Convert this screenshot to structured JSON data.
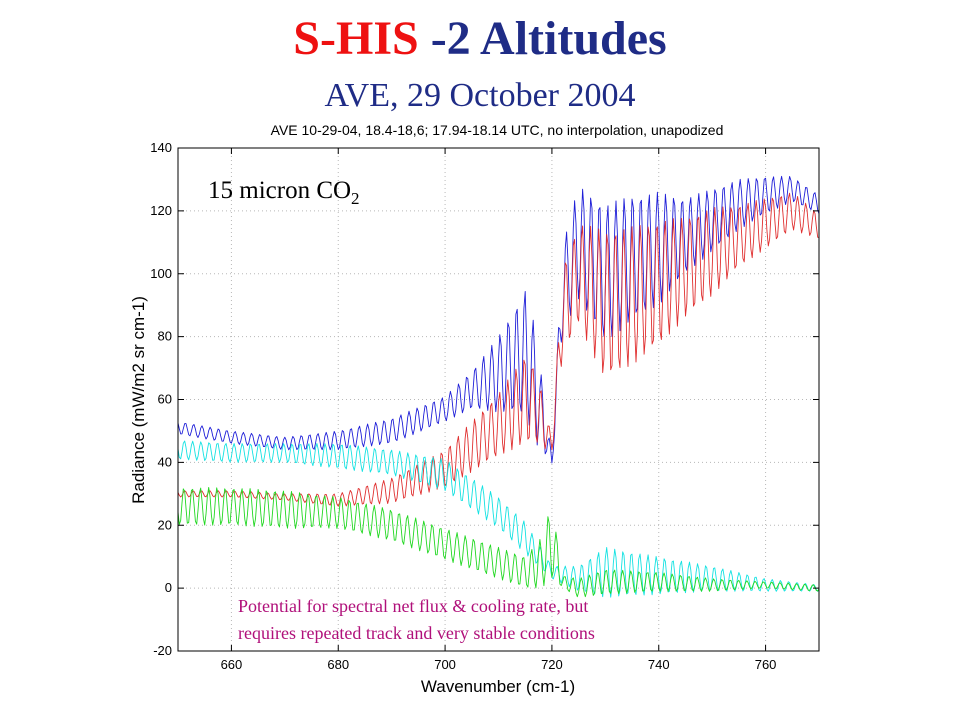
{
  "slide": {
    "title_part1": "S-HIS",
    "title_part2": " -2 Altitudes",
    "subtitle": "AVE, 29 October 2004"
  },
  "chart_data": {
    "type": "line",
    "title": "AVE 10-29-04, 18.4-18,6; 17.94-18.14 UTC, no interpolation, unapodized",
    "xlabel": "Wavenumber (cm-1)",
    "ylabel": "Radiance (mW/m2 sr cm-1)",
    "xlim": [
      650,
      770
    ],
    "ylim": [
      -20,
      140
    ],
    "xticks": [
      660,
      680,
      700,
      720,
      740,
      760
    ],
    "yticks": [
      -20,
      0,
      20,
      40,
      60,
      80,
      100,
      120,
      140
    ],
    "grid": true,
    "series": [
      {
        "color": "#1f1fd8",
        "x": [
          650,
          660,
          670,
          680,
          690,
          700,
          705,
          710,
          715,
          717,
          719,
          720,
          722,
          725,
          730,
          735,
          740,
          745,
          750,
          755,
          760,
          765,
          770
        ],
        "y": [
          51,
          48,
          46,
          47,
          50,
          57,
          63,
          68,
          75,
          64,
          48,
          40,
          95,
          110,
          100,
          105,
          108,
          112,
          117,
          122,
          125,
          127,
          122
        ],
        "amp": [
          2,
          2,
          2,
          3,
          4,
          4,
          6,
          12,
          20,
          18,
          6,
          2,
          14,
          18,
          22,
          20,
          18,
          12,
          10,
          8,
          6,
          4,
          3
        ]
      },
      {
        "color": "#e03030",
        "x": [
          650,
          660,
          670,
          680,
          690,
          700,
          705,
          710,
          715,
          717,
          719,
          720,
          722,
          725,
          730,
          735,
          740,
          745,
          750,
          755,
          760,
          765,
          770
        ],
        "y": [
          30,
          30,
          29,
          28,
          31,
          38,
          45,
          52,
          60,
          58,
          50,
          45,
          88,
          100,
          90,
          93,
          97,
          102,
          107,
          112,
          116,
          120,
          115
        ],
        "amp": [
          1,
          1,
          1,
          2,
          4,
          6,
          8,
          10,
          14,
          12,
          6,
          2,
          14,
          16,
          24,
          22,
          20,
          16,
          14,
          10,
          8,
          6,
          4
        ]
      },
      {
        "color": "#14e2e2",
        "x": [
          650,
          660,
          670,
          680,
          690,
          700,
          705,
          710,
          715,
          720,
          725,
          730,
          740,
          750,
          760,
          770
        ],
        "y": [
          44,
          43,
          43,
          42,
          40,
          36,
          30,
          24,
          16,
          5,
          3,
          5,
          4,
          3,
          1,
          0
        ],
        "amp": [
          3,
          3,
          3,
          4,
          4,
          5,
          5,
          5,
          5,
          2,
          4,
          8,
          6,
          4,
          2,
          1
        ]
      },
      {
        "color": "#22d822",
        "x": [
          650,
          660,
          670,
          680,
          690,
          700,
          705,
          710,
          715,
          718,
          720,
          722,
          725,
          730,
          740,
          750,
          760,
          770
        ],
        "y": [
          26,
          26,
          25,
          24,
          20,
          14,
          11,
          8,
          5,
          8,
          15,
          2,
          0,
          2,
          2,
          1,
          1,
          0
        ],
        "amp": [
          6,
          6,
          6,
          5,
          5,
          5,
          5,
          5,
          5,
          8,
          12,
          2,
          3,
          4,
          3,
          2,
          1,
          1
        ]
      }
    ],
    "annotations": {
      "co2_main": "15 micron CO",
      "co2_sub": "2",
      "note_line1": "Potential for spectral net flux & cooling rate, but",
      "note_line2": "requires repeated track and very stable conditions"
    }
  }
}
